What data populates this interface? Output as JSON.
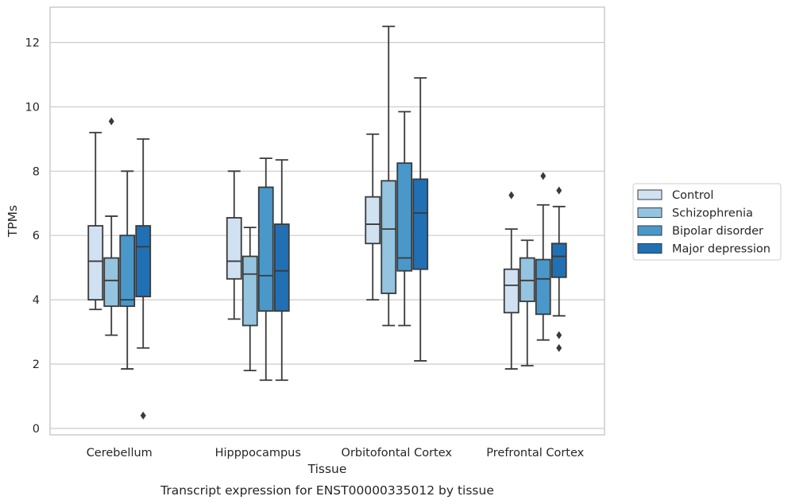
{
  "chart_data": {
    "type": "box",
    "title": "Transcript expression for ENST00000335012 by tissue",
    "xlabel": "Tissue",
    "ylabel": "TPMs",
    "ylim": [
      -0.2,
      13.1
    ],
    "yticks": [
      0,
      2,
      4,
      6,
      8,
      10,
      12
    ],
    "grid": true,
    "legend_position": "right",
    "categories": [
      "Cerebellum",
      "Hipppocampus",
      "Orbitofontal Cortex",
      "Prefrontal Cortex"
    ],
    "series": [
      {
        "name": "Control",
        "color": "#d0e1f2",
        "boxes": [
          {
            "whisker_low": 3.7,
            "q1": 4.0,
            "median": 5.2,
            "q3": 6.3,
            "whisker_high": 9.2,
            "outliers": []
          },
          {
            "whisker_low": 3.4,
            "q1": 4.65,
            "median": 5.2,
            "q3": 6.55,
            "whisker_high": 8.0,
            "outliers": []
          },
          {
            "whisker_low": 4.0,
            "q1": 5.75,
            "median": 6.35,
            "q3": 7.2,
            "whisker_high": 9.15,
            "outliers": []
          },
          {
            "whisker_low": 1.85,
            "q1": 3.6,
            "median": 4.45,
            "q3": 4.95,
            "whisker_high": 6.2,
            "outliers": [
              7.25
            ]
          }
        ]
      },
      {
        "name": "Schizophrenia",
        "color": "#94c4df",
        "boxes": [
          {
            "whisker_low": 2.9,
            "q1": 3.8,
            "median": 4.6,
            "q3": 5.3,
            "whisker_high": 6.6,
            "outliers": [
              9.55
            ]
          },
          {
            "whisker_low": 1.8,
            "q1": 3.2,
            "median": 4.8,
            "q3": 5.35,
            "whisker_high": 6.25,
            "outliers": []
          },
          {
            "whisker_low": 3.2,
            "q1": 4.2,
            "median": 6.2,
            "q3": 7.7,
            "whisker_high": 12.5,
            "outliers": []
          },
          {
            "whisker_low": 1.95,
            "q1": 3.95,
            "median": 4.6,
            "q3": 5.3,
            "whisker_high": 5.85,
            "outliers": []
          }
        ]
      },
      {
        "name": "Bipolar disorder",
        "color": "#4a98c9",
        "boxes": [
          {
            "whisker_low": 1.85,
            "q1": 3.8,
            "median": 4.0,
            "q3": 6.0,
            "whisker_high": 8.0,
            "outliers": []
          },
          {
            "whisker_low": 1.5,
            "q1": 3.65,
            "median": 4.75,
            "q3": 7.5,
            "whisker_high": 8.4,
            "outliers": []
          },
          {
            "whisker_low": 3.2,
            "q1": 4.9,
            "median": 5.3,
            "q3": 8.25,
            "whisker_high": 9.85,
            "outliers": []
          },
          {
            "whisker_low": 2.75,
            "q1": 3.55,
            "median": 4.65,
            "q3": 5.25,
            "whisker_high": 6.95,
            "outliers": [
              7.85
            ]
          }
        ]
      },
      {
        "name": "Major depression",
        "color": "#2170b4",
        "boxes": [
          {
            "whisker_low": 2.5,
            "q1": 4.1,
            "median": 5.65,
            "q3": 6.3,
            "whisker_high": 9.0,
            "outliers": [
              0.4
            ]
          },
          {
            "whisker_low": 1.5,
            "q1": 3.65,
            "median": 4.9,
            "q3": 6.35,
            "whisker_high": 8.35,
            "outliers": []
          },
          {
            "whisker_low": 2.1,
            "q1": 4.95,
            "median": 6.7,
            "q3": 7.75,
            "whisker_high": 10.9,
            "outliers": []
          },
          {
            "whisker_low": 3.5,
            "q1": 4.7,
            "median": 5.35,
            "q3": 5.75,
            "whisker_high": 6.9,
            "outliers": [
              7.4,
              2.9,
              2.5
            ]
          }
        ]
      }
    ]
  }
}
